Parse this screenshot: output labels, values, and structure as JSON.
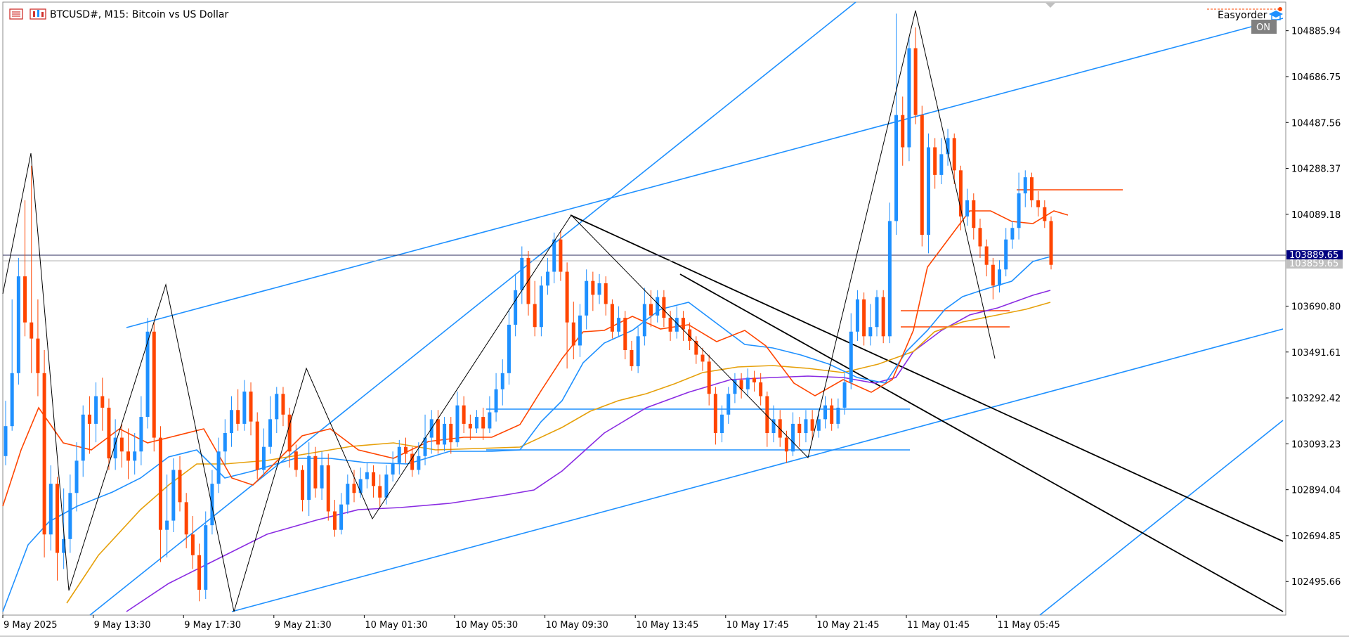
{
  "window": {
    "symbol_title": "BTCUSD#, M15:  Bitcoin vs US Dollar"
  },
  "indicator": {
    "label": "Easyorder",
    "status": "ON"
  },
  "price_axis": {
    "labels": [
      "104885.94",
      "104686.75",
      "104487.56",
      "104288.37",
      "104089.18",
      "103690.80",
      "103491.61",
      "103292.42",
      "103093.23",
      "102894.04",
      "102694.85",
      "102495.66"
    ],
    "bid_label": "103889.65",
    "ask_label": "103859.65"
  },
  "time_axis": {
    "labels": [
      "9 May 2025",
      "9 May 13:30",
      "9 May 17:30",
      "9 May 21:30",
      "10 May 01:30",
      "10 May 05:30",
      "10 May 09:30",
      "10 May 13:45",
      "10 May 17:45",
      "10 May 21:45",
      "11 May 01:45",
      "11 May 05:45"
    ]
  },
  "colors": {
    "bull": "#1e90ff",
    "bear": "#ff4500",
    "ma_fast": "#ff4500",
    "ma_mid": "#1e90ff",
    "ma_slow": "#e6a00a",
    "ma_long": "#8a2be2",
    "trend": "#1e90ff",
    "zigzag": "#000000",
    "bid_box": "#000080",
    "ask_box": "#c0c0c0"
  },
  "chart_data": {
    "type": "candlestick",
    "symbol": "BTCUSD#",
    "timeframe": "M15",
    "y_range": [
      102350,
      105010
    ],
    "bid": 103889.65,
    "ask": 103859.65,
    "candles": [
      {
        "o": 103040,
        "c": 103170,
        "h": 103280,
        "l": 103000
      },
      {
        "o": 103170,
        "c": 103400,
        "h": 103720,
        "l": 103150
      },
      {
        "o": 103400,
        "c": 103820,
        "h": 103900,
        "l": 103350
      },
      {
        "o": 103820,
        "c": 103620,
        "h": 104150,
        "l": 103560
      },
      {
        "o": 103620,
        "c": 103550,
        "h": 104300,
        "l": 103400
      },
      {
        "o": 103550,
        "c": 103400,
        "h": 103720,
        "l": 103300
      },
      {
        "o": 103400,
        "c": 102700,
        "h": 103500,
        "l": 102600
      },
      {
        "o": 102700,
        "c": 102920,
        "h": 103000,
        "l": 102630
      },
      {
        "o": 102920,
        "c": 102620,
        "h": 102950,
        "l": 102500
      },
      {
        "o": 102620,
        "c": 102680,
        "h": 102900,
        "l": 102550
      },
      {
        "o": 102680,
        "c": 102880,
        "h": 102960,
        "l": 102620
      },
      {
        "o": 102880,
        "c": 103020,
        "h": 103100,
        "l": 102800
      },
      {
        "o": 103020,
        "c": 103220,
        "h": 103260,
        "l": 102950
      },
      {
        "o": 103220,
        "c": 103180,
        "h": 103300,
        "l": 103050
      },
      {
        "o": 103180,
        "c": 103300,
        "h": 103360,
        "l": 103100
      },
      {
        "o": 103300,
        "c": 103250,
        "h": 103380,
        "l": 103150
      },
      {
        "o": 103250,
        "c": 103030,
        "h": 103290,
        "l": 102980
      },
      {
        "o": 103030,
        "c": 103120,
        "h": 103200,
        "l": 102980
      },
      {
        "o": 103120,
        "c": 103060,
        "h": 103180,
        "l": 102990
      },
      {
        "o": 103060,
        "c": 103020,
        "h": 103160,
        "l": 102940
      },
      {
        "o": 103020,
        "c": 103060,
        "h": 103140,
        "l": 102960
      },
      {
        "o": 103060,
        "c": 103210,
        "h": 103300,
        "l": 103000
      },
      {
        "o": 103210,
        "c": 103580,
        "h": 103640,
        "l": 103160
      },
      {
        "o": 103580,
        "c": 103120,
        "h": 103620,
        "l": 103060
      },
      {
        "o": 103120,
        "c": 102720,
        "h": 103170,
        "l": 102580
      },
      {
        "o": 102720,
        "c": 102760,
        "h": 102960,
        "l": 102600
      },
      {
        "o": 102760,
        "c": 102980,
        "h": 103030,
        "l": 102710
      },
      {
        "o": 102980,
        "c": 102840,
        "h": 103040,
        "l": 102800
      },
      {
        "o": 102840,
        "c": 102700,
        "h": 102880,
        "l": 102640
      },
      {
        "o": 102700,
        "c": 102610,
        "h": 102780,
        "l": 102550
      },
      {
        "o": 102610,
        "c": 102460,
        "h": 102660,
        "l": 102410
      },
      {
        "o": 102460,
        "c": 102740,
        "h": 102800,
        "l": 102420
      },
      {
        "o": 102740,
        "c": 102920,
        "h": 102980,
        "l": 102700
      },
      {
        "o": 102920,
        "c": 103060,
        "h": 103120,
        "l": 102880
      },
      {
        "o": 103060,
        "c": 103140,
        "h": 103200,
        "l": 103000
      },
      {
        "o": 103140,
        "c": 103240,
        "h": 103300,
        "l": 103080
      },
      {
        "o": 103240,
        "c": 103180,
        "h": 103330,
        "l": 103150
      },
      {
        "o": 103180,
        "c": 103320,
        "h": 103370,
        "l": 103150
      },
      {
        "o": 103320,
        "c": 103190,
        "h": 103360,
        "l": 103130
      },
      {
        "o": 103190,
        "c": 102980,
        "h": 103230,
        "l": 102940
      },
      {
        "o": 102980,
        "c": 103080,
        "h": 103160,
        "l": 102950
      },
      {
        "o": 103080,
        "c": 103200,
        "h": 103300,
        "l": 103050
      },
      {
        "o": 103200,
        "c": 103310,
        "h": 103340,
        "l": 103140
      },
      {
        "o": 103310,
        "c": 103220,
        "h": 103340,
        "l": 103170
      },
      {
        "o": 103220,
        "c": 103060,
        "h": 103250,
        "l": 102990
      },
      {
        "o": 103060,
        "c": 102980,
        "h": 103090,
        "l": 102950
      },
      {
        "o": 102980,
        "c": 102850,
        "h": 103000,
        "l": 102800
      },
      {
        "o": 102850,
        "c": 103040,
        "h": 103100,
        "l": 102780
      },
      {
        "o": 103040,
        "c": 102900,
        "h": 103080,
        "l": 102860
      },
      {
        "o": 102900,
        "c": 103000,
        "h": 103060,
        "l": 102850
      },
      {
        "o": 103000,
        "c": 102800,
        "h": 103050,
        "l": 102760
      },
      {
        "o": 102800,
        "c": 102720,
        "h": 102850,
        "l": 102690
      },
      {
        "o": 102720,
        "c": 102830,
        "h": 102880,
        "l": 102700
      },
      {
        "o": 102830,
        "c": 102920,
        "h": 102960,
        "l": 102790
      },
      {
        "o": 102920,
        "c": 102880,
        "h": 102980,
        "l": 102840
      },
      {
        "o": 102880,
        "c": 102940,
        "h": 102990,
        "l": 102860
      },
      {
        "o": 102940,
        "c": 102970,
        "h": 103010,
        "l": 102900
      },
      {
        "o": 102970,
        "c": 102910,
        "h": 103000,
        "l": 102860
      },
      {
        "o": 102910,
        "c": 102860,
        "h": 102960,
        "l": 102820
      },
      {
        "o": 102860,
        "c": 102960,
        "h": 103000,
        "l": 102830
      },
      {
        "o": 102960,
        "c": 103010,
        "h": 103060,
        "l": 102930
      },
      {
        "o": 103010,
        "c": 103080,
        "h": 103110,
        "l": 102960
      },
      {
        "o": 103080,
        "c": 103050,
        "h": 103120,
        "l": 103010
      },
      {
        "o": 103050,
        "c": 102980,
        "h": 103080,
        "l": 102950
      },
      {
        "o": 102980,
        "c": 103040,
        "h": 103100,
        "l": 102960
      },
      {
        "o": 103040,
        "c": 103120,
        "h": 103220,
        "l": 103000
      },
      {
        "o": 103120,
        "c": 103200,
        "h": 103240,
        "l": 103050
      },
      {
        "o": 103200,
        "c": 103090,
        "h": 103240,
        "l": 103050
      },
      {
        "o": 103090,
        "c": 103180,
        "h": 103210,
        "l": 103060
      },
      {
        "o": 103180,
        "c": 103100,
        "h": 103210,
        "l": 103050
      },
      {
        "o": 103100,
        "c": 103260,
        "h": 103320,
        "l": 103080
      },
      {
        "o": 103260,
        "c": 103180,
        "h": 103300,
        "l": 103140
      },
      {
        "o": 103180,
        "c": 103160,
        "h": 103220,
        "l": 103110
      },
      {
        "o": 103160,
        "c": 103210,
        "h": 103240,
        "l": 103140
      },
      {
        "o": 103210,
        "c": 103160,
        "h": 103250,
        "l": 103110
      },
      {
        "o": 103160,
        "c": 103230,
        "h": 103300,
        "l": 103140
      },
      {
        "o": 103230,
        "c": 103330,
        "h": 103400,
        "l": 103190
      },
      {
        "o": 103330,
        "c": 103400,
        "h": 103460,
        "l": 103260
      },
      {
        "o": 103400,
        "c": 103610,
        "h": 103680,
        "l": 103350
      },
      {
        "o": 103610,
        "c": 103760,
        "h": 103830,
        "l": 103560
      },
      {
        "o": 103760,
        "c": 103900,
        "h": 103950,
        "l": 103700
      },
      {
        "o": 103900,
        "c": 103700,
        "h": 103930,
        "l": 103650
      },
      {
        "o": 103700,
        "c": 103600,
        "h": 103800,
        "l": 103560
      },
      {
        "o": 103600,
        "c": 103780,
        "h": 103820,
        "l": 103560
      },
      {
        "o": 103780,
        "c": 103840,
        "h": 103900,
        "l": 103740
      },
      {
        "o": 103840,
        "c": 103980,
        "h": 104010,
        "l": 103790
      },
      {
        "o": 103980,
        "c": 103840,
        "h": 104020,
        "l": 103800
      },
      {
        "o": 103840,
        "c": 103620,
        "h": 103880,
        "l": 103420
      },
      {
        "o": 103620,
        "c": 103520,
        "h": 103710,
        "l": 103460
      },
      {
        "o": 103520,
        "c": 103650,
        "h": 103700,
        "l": 103470
      },
      {
        "o": 103650,
        "c": 103800,
        "h": 103850,
        "l": 103590
      },
      {
        "o": 103800,
        "c": 103740,
        "h": 103840,
        "l": 103670
      },
      {
        "o": 103740,
        "c": 103790,
        "h": 103830,
        "l": 103700
      },
      {
        "o": 103790,
        "c": 103700,
        "h": 103820,
        "l": 103650
      },
      {
        "o": 103700,
        "c": 103580,
        "h": 103720,
        "l": 103550
      },
      {
        "o": 103580,
        "c": 103640,
        "h": 103690,
        "l": 103560
      },
      {
        "o": 103640,
        "c": 103500,
        "h": 103670,
        "l": 103460
      },
      {
        "o": 103500,
        "c": 103430,
        "h": 103540,
        "l": 103410
      },
      {
        "o": 103430,
        "c": 103560,
        "h": 103600,
        "l": 103400
      },
      {
        "o": 103560,
        "c": 103700,
        "h": 103770,
        "l": 103520
      },
      {
        "o": 103700,
        "c": 103650,
        "h": 103760,
        "l": 103600
      },
      {
        "o": 103650,
        "c": 103730,
        "h": 103760,
        "l": 103620
      },
      {
        "o": 103730,
        "c": 103640,
        "h": 103760,
        "l": 103600
      },
      {
        "o": 103640,
        "c": 103580,
        "h": 103670,
        "l": 103540
      },
      {
        "o": 103580,
        "c": 103640,
        "h": 103690,
        "l": 103550
      },
      {
        "o": 103640,
        "c": 103590,
        "h": 103670,
        "l": 103540
      },
      {
        "o": 103590,
        "c": 103540,
        "h": 103620,
        "l": 103500
      },
      {
        "o": 103540,
        "c": 103480,
        "h": 103560,
        "l": 103440
      },
      {
        "o": 103480,
        "c": 103450,
        "h": 103510,
        "l": 103410
      },
      {
        "o": 103450,
        "c": 103310,
        "h": 103480,
        "l": 103260
      },
      {
        "o": 103310,
        "c": 103140,
        "h": 103340,
        "l": 103090
      },
      {
        "o": 103140,
        "c": 103220,
        "h": 103260,
        "l": 103100
      },
      {
        "o": 103220,
        "c": 103310,
        "h": 103340,
        "l": 103180
      },
      {
        "o": 103310,
        "c": 103370,
        "h": 103400,
        "l": 103270
      },
      {
        "o": 103370,
        "c": 103330,
        "h": 103400,
        "l": 103290
      },
      {
        "o": 103330,
        "c": 103380,
        "h": 103420,
        "l": 103300
      },
      {
        "o": 103380,
        "c": 103360,
        "h": 103410,
        "l": 103320
      },
      {
        "o": 103360,
        "c": 103300,
        "h": 103400,
        "l": 103260
      },
      {
        "o": 103300,
        "c": 103140,
        "h": 103320,
        "l": 103080
      },
      {
        "o": 103140,
        "c": 103200,
        "h": 103260,
        "l": 103100
      },
      {
        "o": 103200,
        "c": 103120,
        "h": 103240,
        "l": 103080
      },
      {
        "o": 103120,
        "c": 103060,
        "h": 103150,
        "l": 103010
      },
      {
        "o": 103060,
        "c": 103180,
        "h": 103230,
        "l": 103040
      },
      {
        "o": 103180,
        "c": 103140,
        "h": 103210,
        "l": 103080
      },
      {
        "o": 103140,
        "c": 103200,
        "h": 103240,
        "l": 103100
      },
      {
        "o": 103200,
        "c": 103150,
        "h": 103240,
        "l": 103110
      },
      {
        "o": 103150,
        "c": 103200,
        "h": 103240,
        "l": 103120
      },
      {
        "o": 103200,
        "c": 103260,
        "h": 103300,
        "l": 103160
      },
      {
        "o": 103260,
        "c": 103180,
        "h": 103290,
        "l": 103150
      },
      {
        "o": 103180,
        "c": 103250,
        "h": 103290,
        "l": 103160
      },
      {
        "o": 103250,
        "c": 103360,
        "h": 103400,
        "l": 103220
      },
      {
        "o": 103360,
        "c": 103580,
        "h": 103660,
        "l": 103330
      },
      {
        "o": 103580,
        "c": 103720,
        "h": 103760,
        "l": 103540
      },
      {
        "o": 103720,
        "c": 103560,
        "h": 103750,
        "l": 103520
      },
      {
        "o": 103560,
        "c": 103600,
        "h": 103700,
        "l": 103520
      },
      {
        "o": 103600,
        "c": 103730,
        "h": 103760,
        "l": 103560
      },
      {
        "o": 103730,
        "c": 103560,
        "h": 103760,
        "l": 103530
      },
      {
        "o": 103560,
        "c": 104060,
        "h": 104140,
        "l": 103530
      },
      {
        "o": 104060,
        "c": 104520,
        "h": 104960,
        "l": 104000
      },
      {
        "o": 104520,
        "c": 104380,
        "h": 104600,
        "l": 104300
      },
      {
        "o": 104380,
        "c": 104810,
        "h": 104860,
        "l": 104320
      },
      {
        "o": 104810,
        "c": 104520,
        "h": 104900,
        "l": 104480
      },
      {
        "o": 104520,
        "c": 104000,
        "h": 104560,
        "l": 103950
      },
      {
        "o": 104000,
        "c": 104380,
        "h": 104440,
        "l": 103920
      },
      {
        "o": 104380,
        "c": 104260,
        "h": 104420,
        "l": 104200
      },
      {
        "o": 104260,
        "c": 104350,
        "h": 104420,
        "l": 104220
      },
      {
        "o": 104350,
        "c": 104420,
        "h": 104460,
        "l": 104300
      },
      {
        "o": 104420,
        "c": 104280,
        "h": 104440,
        "l": 104220
      },
      {
        "o": 104280,
        "c": 104080,
        "h": 104300,
        "l": 104020
      },
      {
        "o": 104080,
        "c": 104150,
        "h": 104200,
        "l": 104040
      },
      {
        "o": 104150,
        "c": 104030,
        "h": 104180,
        "l": 103980
      },
      {
        "o": 104030,
        "c": 103950,
        "h": 104070,
        "l": 103900
      },
      {
        "o": 103950,
        "c": 103870,
        "h": 103980,
        "l": 103820
      },
      {
        "o": 103870,
        "c": 103780,
        "h": 103900,
        "l": 103720
      },
      {
        "o": 103780,
        "c": 103850,
        "h": 103890,
        "l": 103750
      },
      {
        "o": 103850,
        "c": 103980,
        "h": 104030,
        "l": 103820
      },
      {
        "o": 103980,
        "c": 104030,
        "h": 104060,
        "l": 103940
      },
      {
        "o": 104030,
        "c": 104180,
        "h": 104270,
        "l": 103980
      },
      {
        "o": 104180,
        "c": 104250,
        "h": 104280,
        "l": 104120
      },
      {
        "o": 104250,
        "c": 104150,
        "h": 104270,
        "l": 104120
      },
      {
        "o": 104150,
        "c": 104120,
        "h": 104190,
        "l": 104080
      },
      {
        "o": 104120,
        "c": 104060,
        "h": 104150,
        "l": 104030
      },
      {
        "o": 104060,
        "c": 103870,
        "h": 104080,
        "l": 103850
      }
    ]
  }
}
